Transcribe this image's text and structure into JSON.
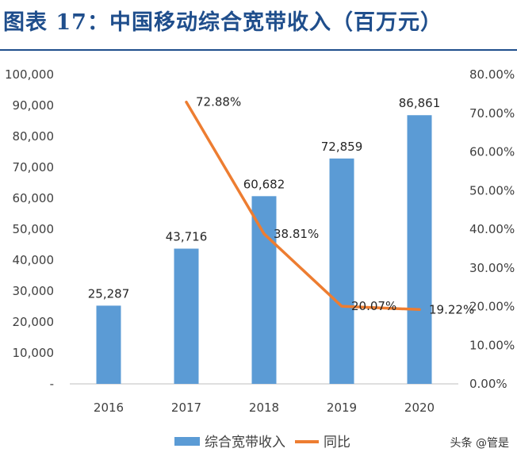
{
  "page": {
    "title": "图表 17：中国移动综合宽带收入（百万元）",
    "watermark": "头条 @管是"
  },
  "colors": {
    "title": "#1f4e8c",
    "bar": "#5b9bd5",
    "line": "#ed7d31",
    "axis": "#bfbfbf"
  },
  "chart_data": {
    "type": "bar",
    "categories": [
      "2016",
      "2017",
      "2018",
      "2019",
      "2020"
    ],
    "series": [
      {
        "name": "综合宽带收入",
        "type": "bar",
        "axis": "left",
        "values": [
          25287,
          43716,
          60682,
          72859,
          86861
        ],
        "labels": [
          "25,287",
          "43,716",
          "60,682",
          "72,859",
          "86,861"
        ]
      },
      {
        "name": "同比",
        "type": "line",
        "axis": "right",
        "values": [
          null,
          72.88,
          38.81,
          20.07,
          19.22
        ],
        "labels": [
          "",
          "72.88%",
          "38.81%",
          "20.07%",
          "19.22%"
        ]
      }
    ],
    "y_left": {
      "min": 0,
      "max": 100000,
      "step": 10000,
      "tick_labels": [
        "-",
        "10,000",
        "20,000",
        "30,000",
        "40,000",
        "50,000",
        "60,000",
        "70,000",
        "80,000",
        "90,000",
        "100,000"
      ]
    },
    "y_right": {
      "min": 0,
      "max": 80,
      "step": 10,
      "tick_labels": [
        "0.00%",
        "10.00%",
        "20.00%",
        "30.00%",
        "40.00%",
        "50.00%",
        "60.00%",
        "70.00%",
        "80.00%"
      ]
    },
    "grid": false,
    "legend": "bottom"
  }
}
